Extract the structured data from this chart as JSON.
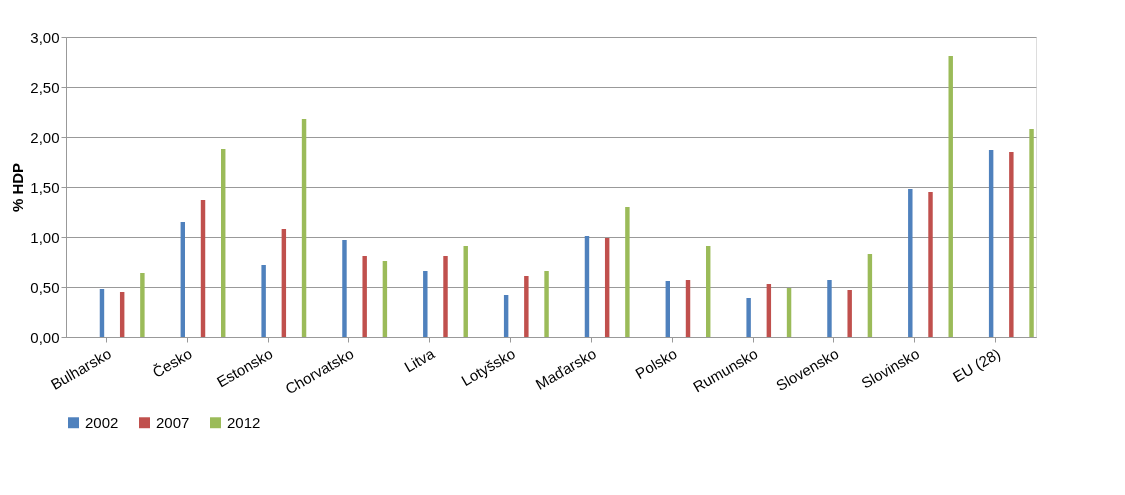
{
  "chart_data": {
    "type": "bar",
    "ylabel": "% HDP",
    "categories": [
      "Bulharsko",
      "Česko",
      "Estonsko",
      "Chorvatsko",
      "Litva",
      "Lotyšsko",
      "Maďarsko",
      "Polsko",
      "Rumunsko",
      "Slovensko",
      "Slovinsko",
      "EU (28)"
    ],
    "series": [
      {
        "name": "2002",
        "color": "#4f81bd",
        "values": [
          0.48,
          1.15,
          0.72,
          0.97,
          0.66,
          0.42,
          1.01,
          0.56,
          0.39,
          0.57,
          1.48,
          1.87
        ]
      },
      {
        "name": "2007",
        "color": "#c0504d",
        "values": [
          0.45,
          1.37,
          1.08,
          0.81,
          0.81,
          0.61,
          0.99,
          0.57,
          0.53,
          0.47,
          1.45,
          1.85
        ]
      },
      {
        "name": "2012",
        "color": "#9bbb59",
        "values": [
          0.64,
          1.88,
          2.18,
          0.76,
          0.91,
          0.66,
          1.3,
          0.91,
          0.49,
          0.83,
          2.81,
          2.08
        ]
      }
    ],
    "ylim": [
      0,
      3
    ],
    "yticks": [
      {
        "value": 0,
        "label": "0,00"
      },
      {
        "value": 0.5,
        "label": "0,50"
      },
      {
        "value": 1,
        "label": "1,00"
      },
      {
        "value": 1.5,
        "label": "1,50"
      },
      {
        "value": 2,
        "label": "2,00"
      },
      {
        "value": 2.5,
        "label": "2,50"
      },
      {
        "value": 3,
        "label": "3,00"
      }
    ],
    "grid": "y",
    "legend": "bottom"
  }
}
